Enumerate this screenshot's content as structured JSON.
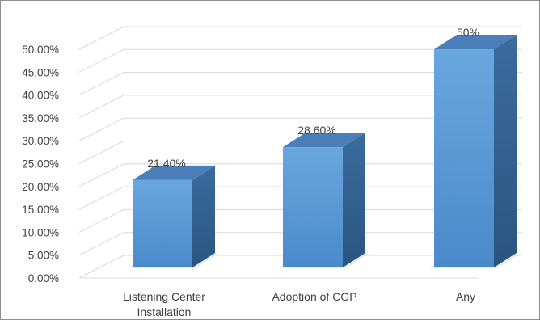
{
  "chart_data": {
    "type": "bar",
    "categories": [
      "Listening Center Installation",
      "Adoption of CGP",
      "Any"
    ],
    "category_lines": [
      [
        "Listening Center",
        "Installation"
      ],
      [
        "Adoption of CGP"
      ],
      [
        "Any"
      ]
    ],
    "values": [
      21.4,
      28.6,
      50
    ],
    "data_labels": [
      "21.40%",
      "28.60%",
      "50%"
    ],
    "ylim": [
      0,
      50
    ],
    "yticks": [
      0,
      5,
      10,
      15,
      20,
      25,
      30,
      35,
      40,
      45,
      50
    ],
    "ytick_labels": [
      "0.00%",
      "5.00%",
      "10.00%",
      "15.00%",
      "20.00%",
      "25.00%",
      "30.00%",
      "35.00%",
      "40.00%",
      "45.00%",
      "50.00%"
    ],
    "title": "",
    "xlabel": "",
    "ylabel": "",
    "grid": true,
    "legend": "none",
    "style": "3d-column",
    "colors": {
      "bar_front": "#5b9bd5",
      "bar_top": "#4a7fba",
      "bar_side": "#2f5f8f",
      "grid": "#d9d9d9",
      "text": "#404040"
    }
  }
}
